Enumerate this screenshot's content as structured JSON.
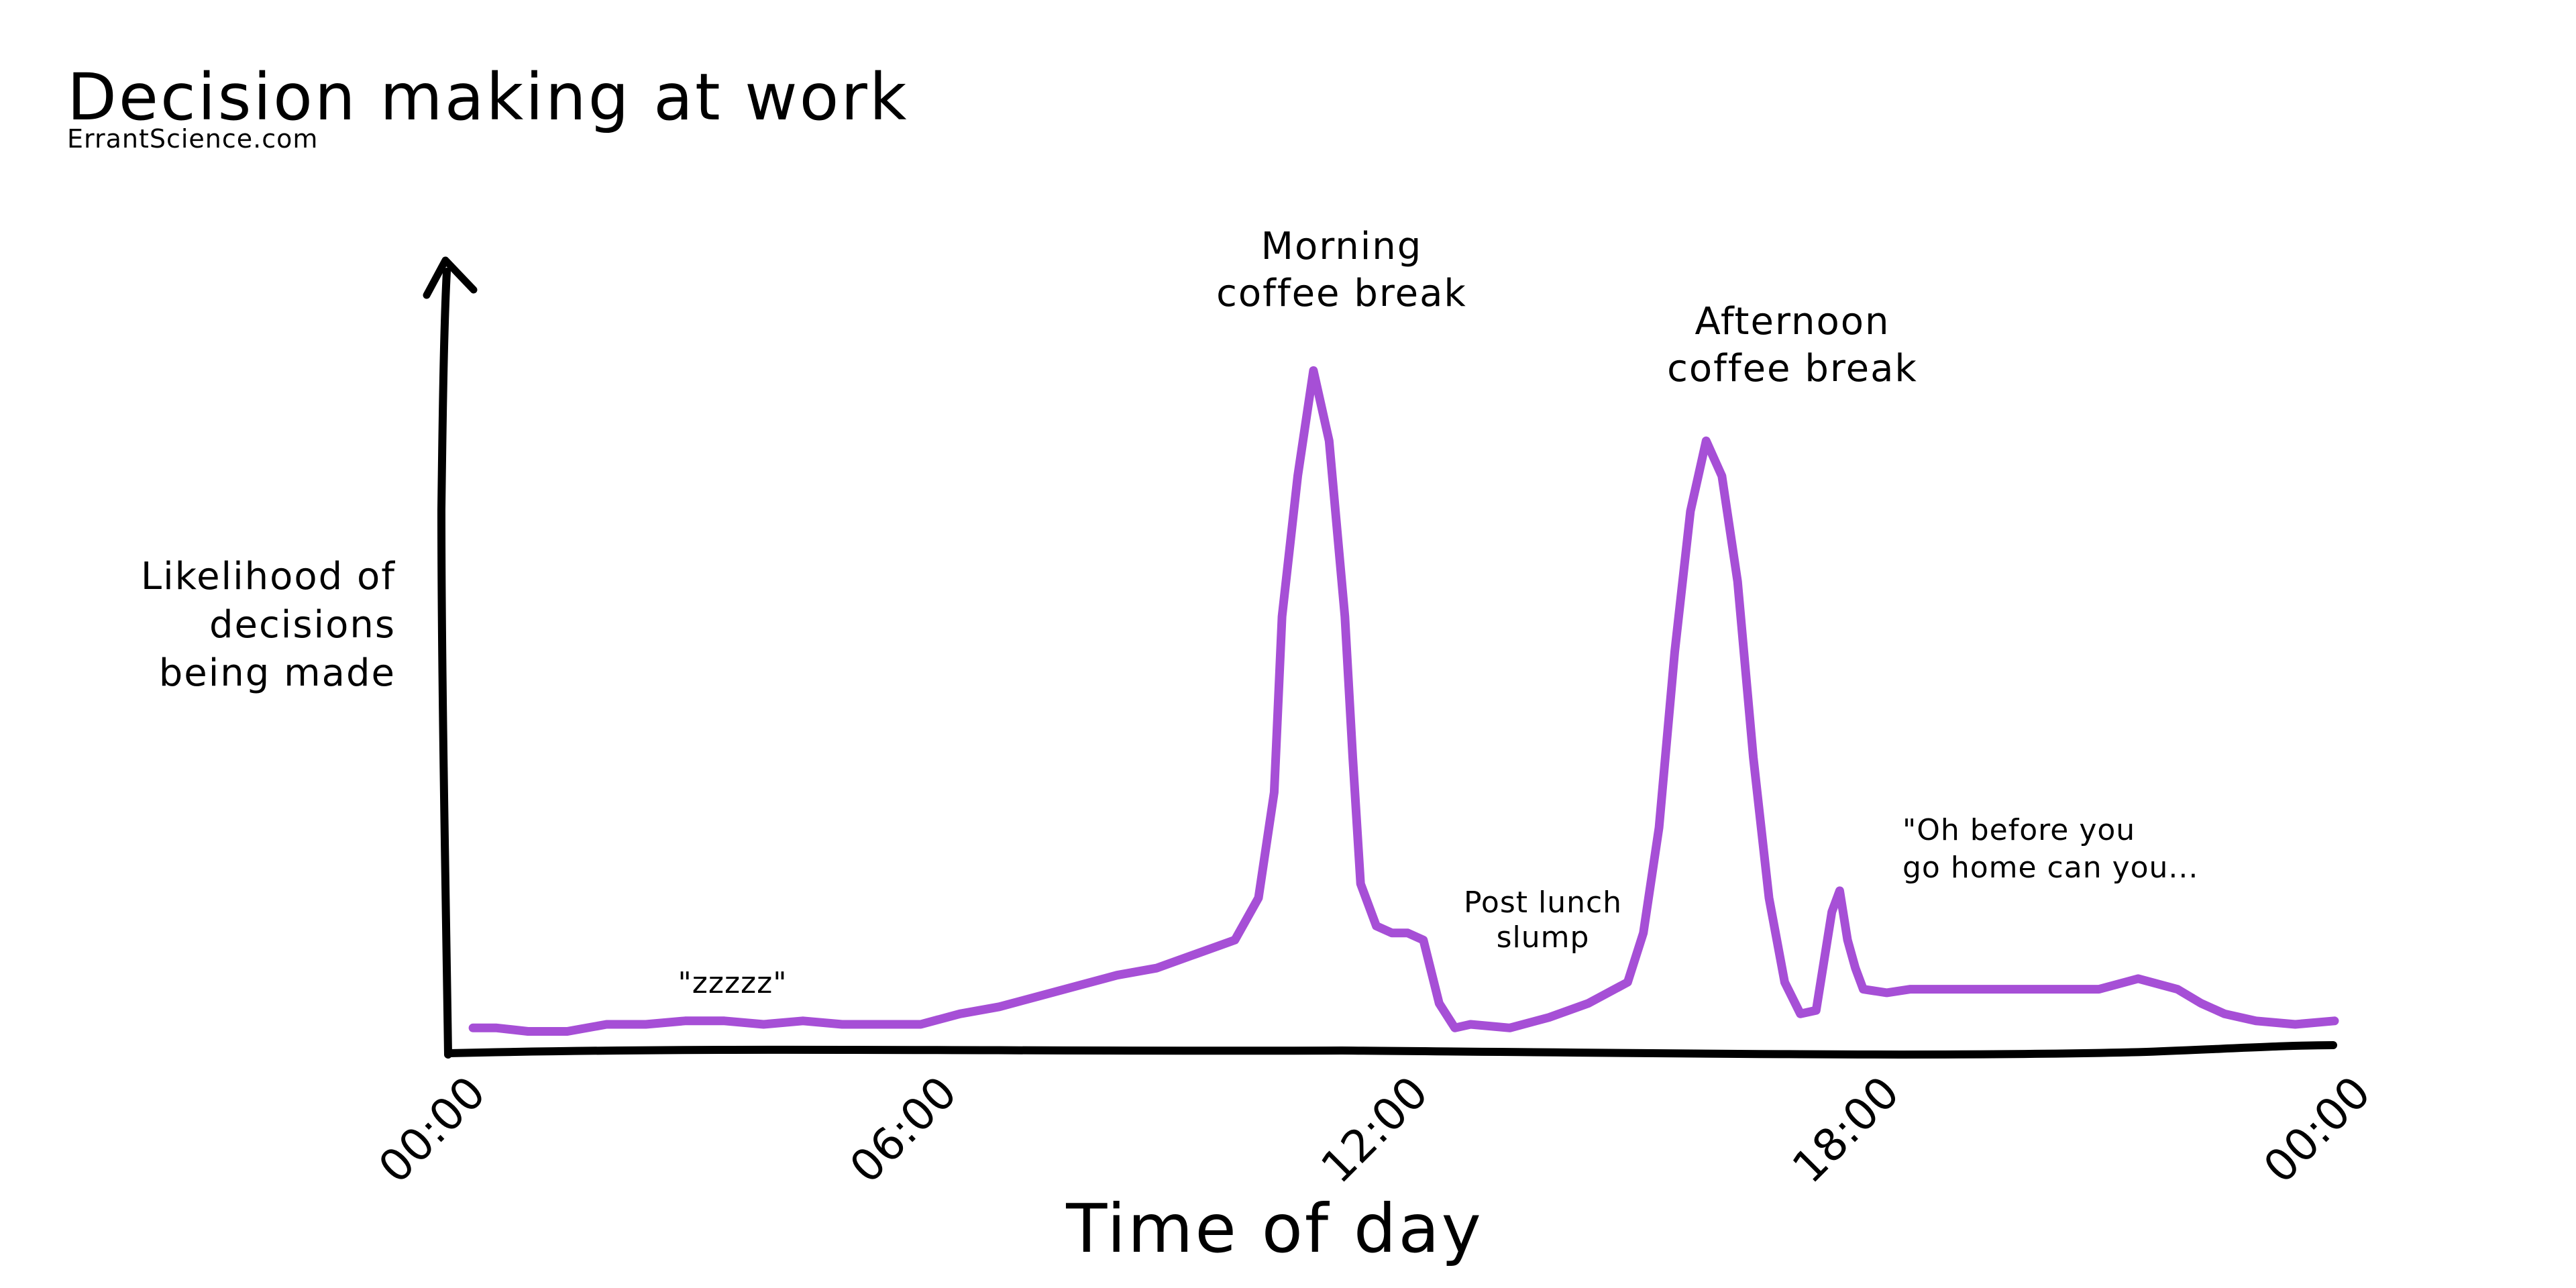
{
  "chart_data": {
    "type": "line",
    "title": "Decision making at work",
    "subtitle": "ErrantScience.com",
    "xlabel": "Time of day",
    "ylabel": [
      "Likelihood of",
      "decisions",
      "being made"
    ],
    "x_ticks": [
      "00:00",
      "06:00",
      "12:00",
      "18:00",
      "00:00"
    ],
    "x_unit": "hours",
    "xlim": [
      0,
      24
    ],
    "ylim": [
      0,
      100
    ],
    "grid": false,
    "legend": "none",
    "series": [
      {
        "color": "#a64fd6",
        "x": [
          0.3,
          0.6,
          1.0,
          1.5,
          2.0,
          2.5,
          3.0,
          3.5,
          4.0,
          4.5,
          5.0,
          5.5,
          6.0,
          6.5,
          7.0,
          7.5,
          8.0,
          8.5,
          9.0,
          9.5,
          10.0,
          10.3,
          10.5,
          10.6,
          10.8,
          11.0,
          11.2,
          11.4,
          11.5,
          11.6,
          11.8,
          12.0,
          12.2,
          12.4,
          12.6,
          12.8,
          13.0,
          13.5,
          14.0,
          14.5,
          15.0,
          15.2,
          15.4,
          15.6,
          15.8,
          16.0,
          16.2,
          16.4,
          16.6,
          16.8,
          17.0,
          17.2,
          17.4,
          17.6,
          17.7,
          17.8,
          17.9,
          18.0,
          18.3,
          18.6,
          19.0,
          19.5,
          20.0,
          20.5,
          21.0,
          21.5,
          22.0,
          22.3,
          22.6,
          23.0,
          23.5,
          24.0
        ],
        "y": [
          1.5,
          1.5,
          1,
          1,
          2,
          2,
          2.5,
          2.5,
          2,
          2.5,
          2,
          2,
          2,
          3.5,
          4.5,
          6,
          7.5,
          9,
          10,
          12,
          14,
          20,
          35,
          60,
          80,
          95,
          85,
          60,
          40,
          22,
          16,
          15,
          15,
          14,
          5,
          1.5,
          2,
          1.5,
          3,
          5,
          8,
          15,
          30,
          55,
          75,
          85,
          80,
          65,
          40,
          20,
          8,
          3.5,
          4,
          18,
          21,
          14,
          10,
          7,
          6.5,
          7,
          7,
          7,
          7,
          7,
          7,
          8.5,
          7,
          5,
          3.5,
          2.5,
          2,
          2.5
        ]
      }
    ],
    "annotations": [
      {
        "text": "\"zzzzz\"",
        "x": 3.5,
        "size": "small"
      },
      {
        "text": [
          "Morning",
          "coffee break"
        ],
        "x": 11.0,
        "size": "big"
      },
      {
        "text": [
          "Post lunch",
          "slump"
        ],
        "x": 13.8,
        "size": "small"
      },
      {
        "text": [
          "Afternoon",
          "coffee break"
        ],
        "x": 16.6,
        "size": "big"
      },
      {
        "text": [
          "\"Oh before you",
          "go home can you..."
        ],
        "x": 19.0,
        "size": "small"
      }
    ]
  },
  "colors": {
    "line": "#a64fd6",
    "axis": "#000000",
    "background": "#ffffff"
  }
}
